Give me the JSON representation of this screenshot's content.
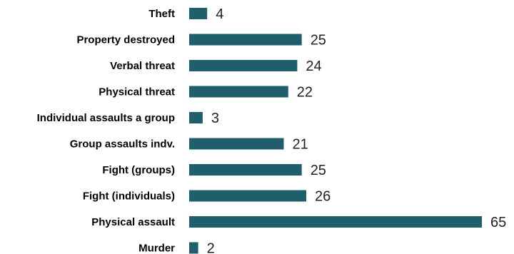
{
  "chart_data": {
    "type": "bar",
    "orientation": "horizontal",
    "categories": [
      "Theft",
      "Property destroyed",
      "Verbal threat",
      "Physical threat",
      "Individual assaults a group",
      "Group assaults indv.",
      "Fight (groups)",
      "Fight (individuals)",
      "Physical assault",
      "Murder"
    ],
    "values": [
      4,
      25,
      24,
      22,
      3,
      21,
      25,
      26,
      65,
      2
    ],
    "value_labels": [
      "4",
      "25",
      "24",
      "22",
      "3",
      "21",
      "25",
      "26",
      "65",
      "2"
    ],
    "xlim": [
      0,
      65
    ],
    "grid": false,
    "legend": "none",
    "bar_color": "#1f5f6b"
  }
}
